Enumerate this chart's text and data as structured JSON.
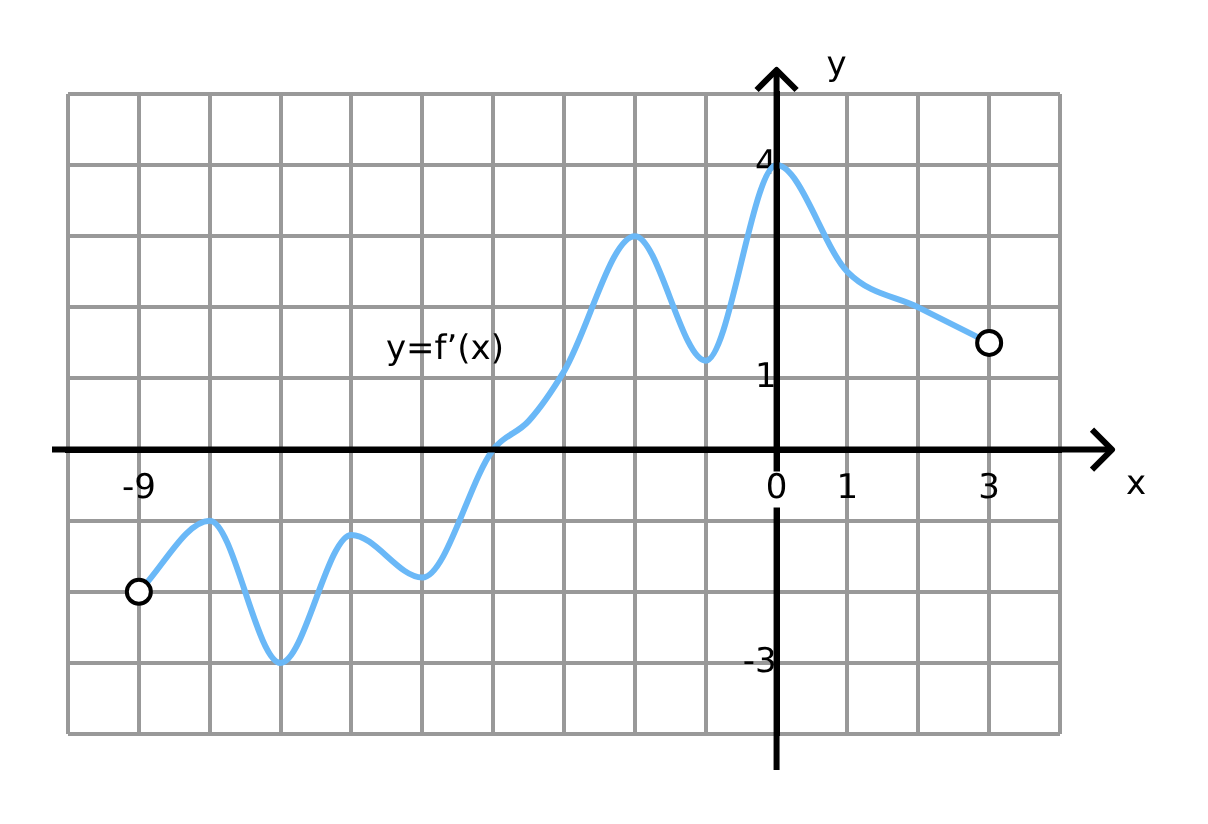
{
  "chart_data": {
    "type": "line",
    "xlabel": "x",
    "ylabel": "y",
    "annotations": [
      "y=f’(x)"
    ],
    "xlim": [
      -10,
      4
    ],
    "ylim": [
      -4,
      5
    ],
    "xticks": [
      {
        "value": -10,
        "label": null
      },
      -9,
      {
        "value": -8,
        "label": null
      },
      {
        "value": -7,
        "label": null
      },
      {
        "value": -6,
        "label": null
      },
      {
        "value": -5,
        "label": null
      },
      {
        "value": -4,
        "label": null
      },
      {
        "value": -3,
        "label": null
      },
      {
        "value": -2,
        "label": null
      },
      {
        "value": -1,
        "label": null
      },
      0,
      1,
      {
        "value": 2,
        "label": null
      },
      3,
      {
        "value": 4,
        "label": null
      }
    ],
    "yticks": [
      {
        "value": -4,
        "label": null
      },
      -3,
      {
        "value": -2,
        "label": null
      },
      {
        "value": -1,
        "label": null
      },
      {
        "value": 0,
        "label": null
      },
      1,
      {
        "value": 2,
        "label": null
      },
      {
        "value": 3,
        "label": null
      },
      4,
      {
        "value": 5,
        "label": null
      }
    ],
    "grid": true,
    "legend": false,
    "series": [
      {
        "color": "#6ab8f7",
        "marker": "none",
        "x": [
          -9,
          -8,
          -7,
          -6,
          -5,
          -4,
          -3.5,
          -3,
          -2,
          -1,
          0,
          1,
          2,
          3
        ],
        "values": [
          -2,
          -1,
          -3,
          -1.2,
          -1.8,
          0,
          0.4,
          1.1,
          3,
          1.25,
          4,
          2.5,
          2,
          1.5
        ]
      },
      {
        "type": "scatter",
        "color": "#000000",
        "marker": "circle",
        "x": [
          -9,
          3
        ],
        "values": [
          -2,
          1.5
        ]
      }
    ]
  }
}
